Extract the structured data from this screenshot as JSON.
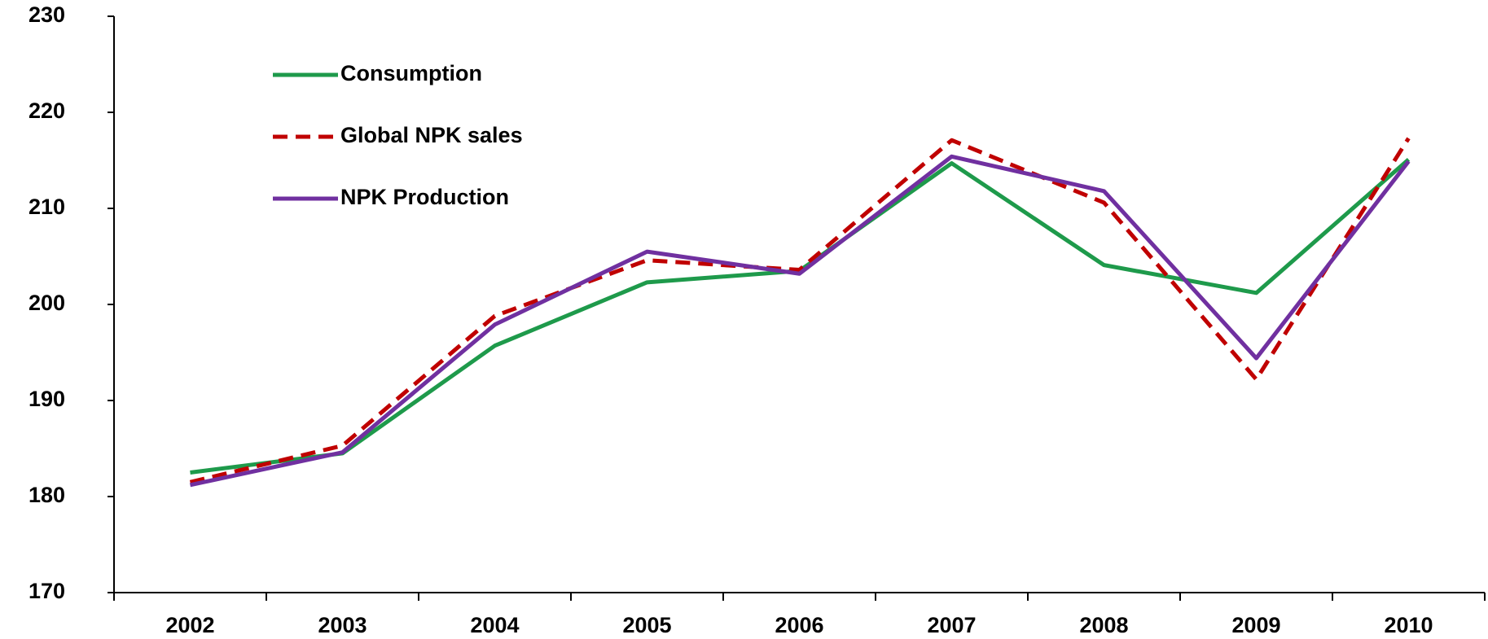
{
  "chart_data": {
    "type": "line",
    "categories": [
      "2002",
      "2003",
      "2004",
      "2005",
      "2006",
      "2007",
      "2008",
      "2009",
      "2010"
    ],
    "series": [
      {
        "name": "Consumption",
        "color": "#1e9a4b",
        "dash": false,
        "values": [
          182.5,
          184.5,
          195.7,
          202.3,
          203.5,
          214.7,
          204.1,
          201.2,
          215.1
        ]
      },
      {
        "name": "Global NPK sales",
        "color": "#c00000",
        "dash": true,
        "values": [
          181.5,
          185.3,
          198.8,
          204.6,
          203.6,
          217.1,
          210.6,
          192.2,
          217.3
        ]
      },
      {
        "name": "NPK Production",
        "color": "#7030a0",
        "dash": false,
        "values": [
          181.2,
          184.6,
          197.9,
          205.5,
          203.2,
          215.4,
          211.8,
          194.4,
          214.9
        ]
      }
    ],
    "ylim": [
      170,
      230
    ],
    "yticks": [
      170,
      180,
      190,
      200,
      210,
      220,
      230
    ],
    "legend": "upper left"
  }
}
